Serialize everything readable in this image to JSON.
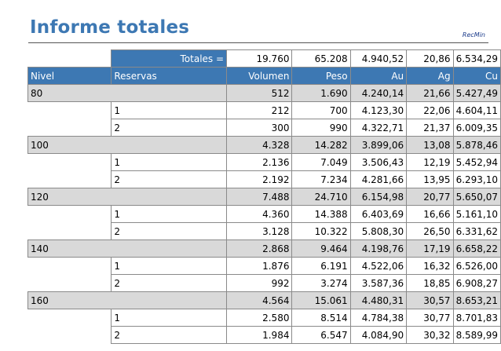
{
  "report": {
    "title": "Informe totales",
    "brand": "RecMin"
  },
  "totals": {
    "label": "Totales =",
    "volumen": "19.760",
    "peso": "65.208",
    "au": "4.940,52",
    "ag": "20,86",
    "cu": "6.534,29"
  },
  "columns": {
    "nivel": "Nivel",
    "reservas": "Reservas",
    "volumen": "Volumen",
    "peso": "Peso",
    "au": "Au",
    "ag": "Ag",
    "cu": "Cu"
  },
  "groups": [
    {
      "nivel": "80",
      "volumen": "512",
      "peso": "1.690",
      "au": "4.240,14",
      "ag": "21,66",
      "cu": "5.427,49",
      "rows": [
        {
          "reserva": "1",
          "volumen": "212",
          "peso": "700",
          "au": "4.123,30",
          "ag": "22,06",
          "cu": "4.604,11"
        },
        {
          "reserva": "2",
          "volumen": "300",
          "peso": "990",
          "au": "4.322,71",
          "ag": "21,37",
          "cu": "6.009,35"
        }
      ]
    },
    {
      "nivel": "100",
      "volumen": "4.328",
      "peso": "14.282",
      "au": "3.899,06",
      "ag": "13,08",
      "cu": "5.878,46",
      "rows": [
        {
          "reserva": "1",
          "volumen": "2.136",
          "peso": "7.049",
          "au": "3.506,43",
          "ag": "12,19",
          "cu": "5.452,94"
        },
        {
          "reserva": "2",
          "volumen": "2.192",
          "peso": "7.234",
          "au": "4.281,66",
          "ag": "13,95",
          "cu": "6.293,10"
        }
      ]
    },
    {
      "nivel": "120",
      "volumen": "7.488",
      "peso": "24.710",
      "au": "6.154,98",
      "ag": "20,77",
      "cu": "5.650,07",
      "rows": [
        {
          "reserva": "1",
          "volumen": "4.360",
          "peso": "14.388",
          "au": "6.403,69",
          "ag": "16,66",
          "cu": "5.161,10"
        },
        {
          "reserva": "2",
          "volumen": "3.128",
          "peso": "10.322",
          "au": "5.808,30",
          "ag": "26,50",
          "cu": "6.331,62"
        }
      ]
    },
    {
      "nivel": "140",
      "volumen": "2.868",
      "peso": "9.464",
      "au": "4.198,76",
      "ag": "17,19",
      "cu": "6.658,22",
      "rows": [
        {
          "reserva": "1",
          "volumen": "1.876",
          "peso": "6.191",
          "au": "4.522,06",
          "ag": "16,32",
          "cu": "6.526,00"
        },
        {
          "reserva": "2",
          "volumen": "992",
          "peso": "3.274",
          "au": "3.587,36",
          "ag": "18,85",
          "cu": "6.908,27"
        }
      ]
    },
    {
      "nivel": "160",
      "volumen": "4.564",
      "peso": "15.061",
      "au": "4.480,31",
      "ag": "30,57",
      "cu": "8.653,21",
      "rows": [
        {
          "reserva": "1",
          "volumen": "2.580",
          "peso": "8.514",
          "au": "4.784,38",
          "ag": "30,77",
          "cu": "8.701,83"
        },
        {
          "reserva": "2",
          "volumen": "1.984",
          "peso": "6.547",
          "au": "4.084,90",
          "ag": "30,32",
          "cu": "8.589,99"
        }
      ]
    }
  ]
}
